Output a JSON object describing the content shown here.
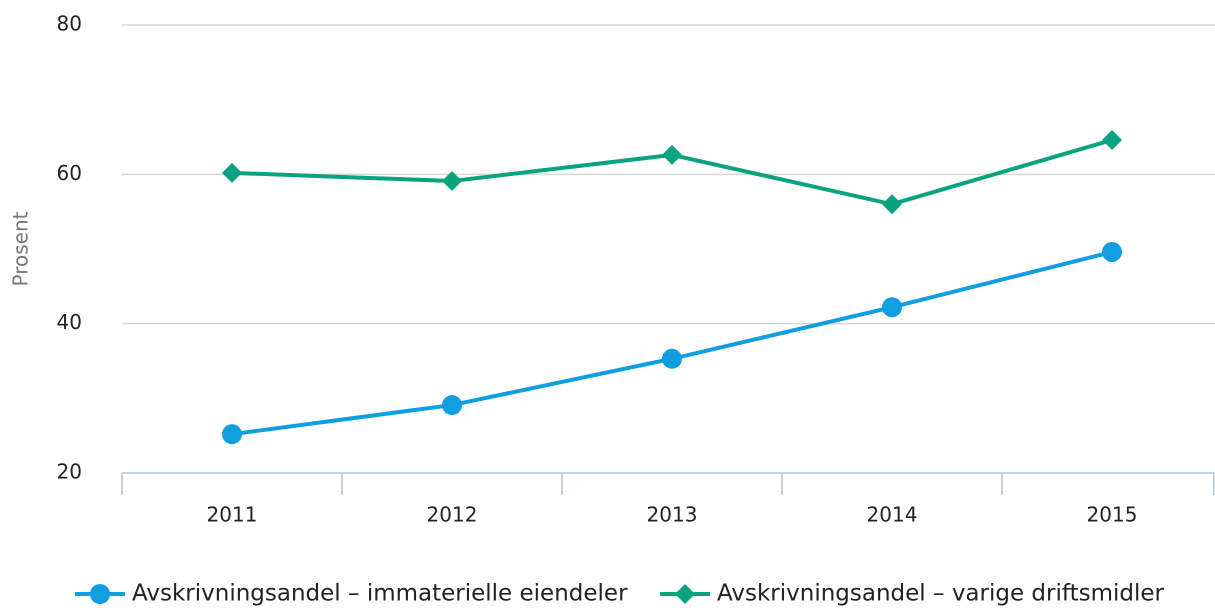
{
  "chart_data": {
    "type": "line",
    "y_label": "Prosent",
    "categories": [
      "2011",
      "2012",
      "2013",
      "2014",
      "2015"
    ],
    "series": [
      {
        "name": "Avskrivningsandel – immaterielle eiendeler",
        "color": "#0f9fe0",
        "marker": "circle",
        "values": [
          25.2,
          29.1,
          35.3,
          42.2,
          49.6
        ]
      },
      {
        "name": "Avskrivningsandel – varige driftsmidler",
        "color": "#0aa37f",
        "marker": "diamond",
        "values": [
          60.2,
          59.1,
          62.6,
          56.0,
          64.6
        ]
      }
    ],
    "ylim": [
      20,
      80
    ],
    "yticks": [
      20,
      40,
      60,
      80
    ],
    "grid": true
  }
}
